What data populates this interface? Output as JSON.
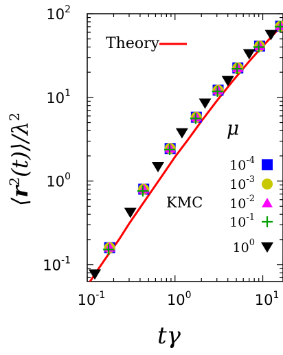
{
  "chart_data": {
    "type": "scatter",
    "xscale": "log",
    "yscale": "log",
    "xlim": [
      0.1,
      17
    ],
    "ylim": [
      0.063,
      100
    ],
    "xticks": [
      {
        "base": "10",
        "exp": "-1"
      },
      {
        "base": "10",
        "exp": "0"
      },
      {
        "base": "10",
        "exp": "1"
      }
    ],
    "yticks": [
      {
        "base": "10",
        "exp": "-1"
      },
      {
        "base": "10",
        "exp": "0"
      },
      {
        "base": "10",
        "exp": "1"
      },
      {
        "base": "10",
        "exp": "2"
      }
    ],
    "xlabel": {
      "main": "tγ"
    },
    "ylabel": {
      "main": "⟨r(t)⟩/λ",
      "sup1": "2",
      "sup2": "2"
    },
    "theory": {
      "label": "Theory",
      "color": "#ff0000",
      "x": [
        0.1,
        0.13,
        0.17,
        0.23,
        0.3,
        0.4,
        0.55,
        0.75,
        1.0,
        1.4,
        2.0,
        3.0,
        4.5,
        7.0,
        10.0,
        17.0
      ],
      "y": [
        0.056,
        0.085,
        0.128,
        0.2,
        0.31,
        0.48,
        0.78,
        1.25,
        1.95,
        3.1,
        5.2,
        9.1,
        15.5,
        27.0,
        41.0,
        75.0
      ]
    },
    "legend": {
      "title": "μ",
      "group_label": "KMC",
      "placement": "right"
    },
    "series": [
      {
        "name": "10",
        "exp": "-4",
        "marker": "square",
        "color": "#0000ff",
        "x": [
          0.18,
          0.44,
          0.88,
          1.75,
          3.1,
          5.2,
          9.2,
          16.0
        ],
        "y": [
          0.16,
          0.8,
          2.45,
          5.8,
          12.2,
          22.5,
          41.0,
          71.0
        ]
      },
      {
        "name": "10",
        "exp": "-3",
        "marker": "circle",
        "color": "#c8c800",
        "x": [
          0.18,
          0.44,
          0.88,
          1.75,
          3.1,
          5.2,
          9.2,
          16.0
        ],
        "y": [
          0.16,
          0.8,
          2.45,
          5.8,
          12.2,
          22.5,
          41.0,
          71.0
        ]
      },
      {
        "name": "10",
        "exp": "-2",
        "marker": "triangle-up",
        "color": "#ff00ff",
        "x": [
          0.18,
          0.44,
          0.88,
          1.75,
          3.1,
          5.2,
          9.2,
          16.0
        ],
        "y": [
          0.16,
          0.8,
          2.45,
          5.8,
          12.2,
          22.5,
          41.0,
          71.0
        ]
      },
      {
        "name": "10",
        "exp": "-1",
        "marker": "plus",
        "color": "#00a000",
        "x": [
          0.175,
          0.43,
          0.87,
          1.72,
          3.05,
          5.1,
          9.0,
          15.8
        ],
        "y": [
          0.152,
          0.76,
          2.38,
          5.6,
          11.8,
          22.0,
          40.0,
          70.0
        ]
      },
      {
        "name": "10",
        "exp": "0",
        "marker": "triangle-down",
        "color": "#000000",
        "x": [
          0.122,
          0.31,
          0.64,
          1.2,
          2.2,
          4.0,
          7.0,
          12.4
        ],
        "y": [
          0.077,
          0.42,
          1.48,
          3.75,
          8.5,
          15.8,
          33.0,
          56.0
        ]
      }
    ]
  }
}
